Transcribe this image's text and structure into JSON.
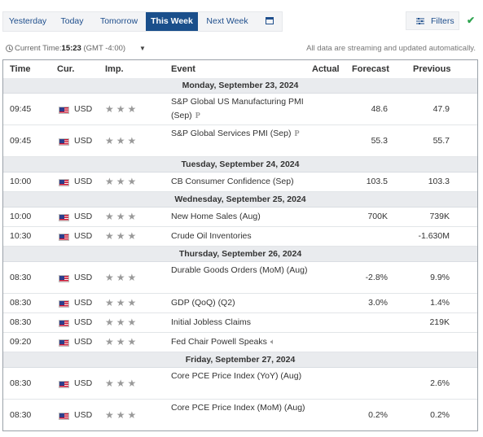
{
  "tabs": [
    "Yesterday",
    "Today",
    "Tomorrow",
    "This Week",
    "Next Week"
  ],
  "active_tab": "This Week",
  "filters_label": "Filters",
  "status": {
    "current_time_label": "Current Time:",
    "current_time": "15:23",
    "timezone": "(GMT -4:00)",
    "stream_note": "All data are streaming and updated automatically."
  },
  "headers": {
    "time": "Time",
    "currency": "Cur.",
    "importance": "Imp.",
    "event": "Event",
    "actual": "Actual",
    "forecast": "Forecast",
    "previous": "Previous"
  },
  "days": [
    {
      "date": "Monday, September 23, 2024",
      "events": [
        {
          "time": "09:45",
          "currency": "USD",
          "event": "S&P Global US Manufacturing PMI (Sep)",
          "preliminary": true,
          "actual": "",
          "forecast": "48.6",
          "previous": "47.9"
        },
        {
          "time": "09:45",
          "currency": "USD",
          "event": "S&P Global Services PMI (Sep)",
          "preliminary": true,
          "actual": "",
          "forecast": "55.3",
          "previous": "55.7"
        }
      ]
    },
    {
      "date": "Tuesday, September 24, 2024",
      "events": [
        {
          "time": "10:00",
          "currency": "USD",
          "event": "CB Consumer Confidence (Sep)",
          "actual": "",
          "forecast": "103.5",
          "previous": "103.3"
        }
      ]
    },
    {
      "date": "Wednesday, September 25, 2024",
      "events": [
        {
          "time": "10:00",
          "currency": "USD",
          "event": "New Home Sales (Aug)",
          "actual": "",
          "forecast": "700K",
          "previous": "739K"
        },
        {
          "time": "10:30",
          "currency": "USD",
          "event": "Crude Oil Inventories",
          "actual": "",
          "forecast": "",
          "previous": "-1.630M"
        }
      ]
    },
    {
      "date": "Thursday, September 26, 2024",
      "events": [
        {
          "time": "08:30",
          "currency": "USD",
          "event": "Durable Goods Orders (MoM) (Aug)",
          "actual": "",
          "forecast": "-2.8%",
          "previous": "9.9%"
        },
        {
          "time": "08:30",
          "currency": "USD",
          "event": "GDP (QoQ) (Q2)",
          "actual": "",
          "forecast": "3.0%",
          "previous": "1.4%"
        },
        {
          "time": "08:30",
          "currency": "USD",
          "event": "Initial Jobless Claims",
          "actual": "",
          "forecast": "",
          "previous": "219K"
        },
        {
          "time": "09:20",
          "currency": "USD",
          "event": "Fed Chair Powell Speaks",
          "speech": true,
          "actual": "",
          "forecast": "",
          "previous": ""
        }
      ]
    },
    {
      "date": "Friday, September 27, 2024",
      "events": [
        {
          "time": "08:30",
          "currency": "USD",
          "event": "Core PCE Price Index (YoY) (Aug)",
          "actual": "",
          "forecast": "",
          "previous": "2.6%"
        },
        {
          "time": "08:30",
          "currency": "USD",
          "event": "Core PCE Price Index (MoM) (Aug)",
          "actual": "",
          "forecast": "0.2%",
          "previous": "0.2%"
        }
      ]
    }
  ],
  "importance_stars": "★★★",
  "preliminary_mark": "P",
  "colors": {
    "active_tab": "#1a4f8b",
    "link": "#1e4e8c",
    "day_header_bg": "#e9ebee",
    "check": "#2ea44f"
  },
  "icons": {
    "calendar": "calendar-icon",
    "filters": "filters-icon",
    "check": "check-icon",
    "clock": "clock-icon",
    "chevron": "chevron-down-icon",
    "speaker": "speaker-icon",
    "flag": "us-flag-icon"
  }
}
